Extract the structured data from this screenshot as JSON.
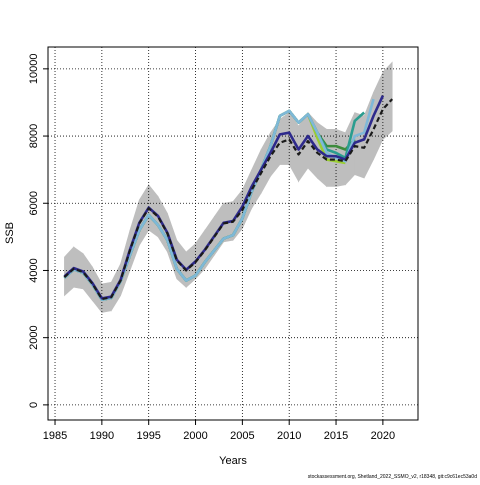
{
  "chart_data": {
    "type": "line",
    "xlabel": "Years",
    "ylabel": "SSB",
    "footer": "stockassessment.org, Shetland_2022_SSMO_v2, r18348, git:c9c61ec53a0d",
    "x": [
      1986,
      1987,
      1988,
      1989,
      1990,
      1991,
      1992,
      1993,
      1994,
      1995,
      1996,
      1997,
      1998,
      1999,
      2000,
      2001,
      2002,
      2003,
      2004,
      2005,
      2006,
      2007,
      2008,
      2009,
      2010,
      2011,
      2012,
      2013,
      2014,
      2015,
      2016,
      2017,
      2018,
      2019,
      2020,
      2021
    ],
    "xlim": [
      1984.25,
      2023.75
    ],
    "xticks": [
      1985,
      1990,
      1995,
      2000,
      2005,
      2010,
      2015,
      2020
    ],
    "ylim": [
      -450,
      10650
    ],
    "yticks": [
      0,
      2000,
      4000,
      6000,
      8000,
      10000
    ],
    "grid": true,
    "band": {
      "color": "#bebebe",
      "upper": [
        4400,
        4700,
        4500,
        4100,
        3600,
        3650,
        4200,
        5200,
        6100,
        6550,
        6200,
        5700,
        4900,
        4550,
        4800,
        5200,
        5600,
        6000,
        6050,
        6400,
        7000,
        7600,
        8100,
        8500,
        8700,
        8300,
        8700,
        8400,
        8200,
        8200,
        8100,
        8700,
        8600,
        9300,
        9900,
        10200
      ],
      "lower": [
        3250,
        3500,
        3450,
        3100,
        2750,
        2800,
        3250,
        4000,
        4750,
        5200,
        5000,
        4550,
        3750,
        3500,
        3750,
        4050,
        4450,
        4850,
        4900,
        5250,
        5850,
        6300,
        6800,
        7150,
        7150,
        6650,
        7050,
        6750,
        6500,
        6500,
        6550,
        6850,
        6750,
        7300,
        7900,
        8150
      ]
    },
    "series": [
      {
        "color": "#9acd32",
        "dash": false,
        "values": [
          3780,
          4030,
          3930,
          3580,
          3130,
          3180,
          3680,
          4450,
          5200,
          5650,
          5350,
          4900,
          4050,
          3700,
          3850,
          4250,
          4600,
          4950,
          5050,
          5550,
          6350,
          7000,
          7700,
          8600,
          8750,
          8400,
          8650,
          7950,
          7300,
          7250,
          7200,
          null,
          null,
          null,
          null,
          null
        ]
      },
      {
        "color": "#3d8b3d",
        "dash": false,
        "values": [
          3780,
          4030,
          3930,
          3580,
          3130,
          3180,
          3680,
          4450,
          5200,
          5650,
          5350,
          4900,
          4050,
          3700,
          3850,
          4250,
          4600,
          4950,
          5050,
          5550,
          6350,
          7000,
          7700,
          8600,
          8750,
          8400,
          8650,
          8100,
          7700,
          7700,
          7600,
          7900,
          null,
          null,
          null,
          null
        ]
      },
      {
        "color": "#2a9d8f",
        "dash": false,
        "values": [
          3780,
          4030,
          3930,
          3580,
          3130,
          3180,
          3680,
          4450,
          5200,
          5650,
          5350,
          4900,
          4050,
          3700,
          3850,
          4250,
          4600,
          4950,
          5050,
          5550,
          6350,
          7000,
          7700,
          8600,
          8750,
          8400,
          8650,
          8100,
          7600,
          7500,
          7350,
          8450,
          8700,
          null,
          null,
          null
        ]
      },
      {
        "color": "#7fb8d8",
        "dash": false,
        "values": [
          3780,
          4030,
          3930,
          3580,
          3130,
          3180,
          3680,
          4450,
          5200,
          5650,
          5350,
          4900,
          4050,
          3700,
          3850,
          4250,
          4600,
          4950,
          5050,
          5550,
          6350,
          7000,
          7700,
          8600,
          8750,
          8400,
          8650,
          8100,
          7500,
          7350,
          7250,
          8000,
          8100,
          9100,
          null,
          null
        ]
      },
      {
        "color": "#2e2a8c",
        "dash": false,
        "values": [
          3820,
          4070,
          3970,
          3620,
          3170,
          3220,
          3720,
          4620,
          5420,
          5870,
          5620,
          5120,
          4320,
          4020,
          4270,
          4620,
          5020,
          5420,
          5470,
          5900,
          6500,
          7000,
          7500,
          8050,
          8100,
          7600,
          8000,
          7600,
          7400,
          7400,
          7300,
          7800,
          7900,
          8600,
          9200,
          null
        ]
      },
      {
        "color": "#1a1a1a",
        "dash": true,
        "values": [
          3800,
          4050,
          3950,
          3600,
          3150,
          3200,
          3700,
          4600,
          5400,
          5850,
          5600,
          5100,
          4300,
          4000,
          4250,
          4600,
          5000,
          5400,
          5450,
          5800,
          6400,
          6900,
          7400,
          7800,
          7900,
          7450,
          7850,
          7500,
          7300,
          7300,
          7250,
          7700,
          7650,
          8200,
          8800,
          9100
        ]
      }
    ]
  }
}
